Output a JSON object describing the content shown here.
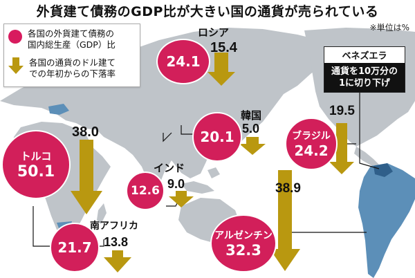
{
  "headline": "外貨建て債務のGDP比が大きい国の通貨が売られている",
  "unit_note": "※単位は%",
  "legend": {
    "gdp_label_line1": "各国の外貨建て債務の",
    "gdp_label_line2": "国内総生産（GDP）比",
    "drop_label_line1": "各国の通貨のドル建て",
    "drop_label_line2": "での年初からの下落率"
  },
  "colors": {
    "bubble": "#d21f5a",
    "arrow": "#b99810",
    "ocean": "#ffffff",
    "land": "#bfc4c9",
    "highlight_land": "#5c8fb8"
  },
  "countries": {
    "russia": {
      "name": "ロシア",
      "debt_gdp": "24.1",
      "currency_drop": "15.4"
    },
    "korea": {
      "name": "韓国",
      "debt_gdp": "20.1",
      "currency_drop": "5.0"
    },
    "turkey": {
      "name": "トルコ",
      "debt_gdp": "50.1",
      "currency_drop": "38.0"
    },
    "india": {
      "name": "インド",
      "debt_gdp": "12.6",
      "currency_drop": "9.0"
    },
    "south_africa": {
      "name": "南アフリカ",
      "debt_gdp": "21.7",
      "currency_drop": "13.8"
    },
    "brazil": {
      "name": "ブラジル",
      "debt_gdp": "24.2",
      "currency_drop": "19.5"
    },
    "argentina": {
      "name": "アルゼンチン",
      "debt_gdp": "32.3",
      "currency_drop": "38.9"
    }
  },
  "venezuela": {
    "name": "ベネズエラ",
    "note_line1": "通貨を10万分の",
    "note_line2": "1に切り下げ"
  }
}
